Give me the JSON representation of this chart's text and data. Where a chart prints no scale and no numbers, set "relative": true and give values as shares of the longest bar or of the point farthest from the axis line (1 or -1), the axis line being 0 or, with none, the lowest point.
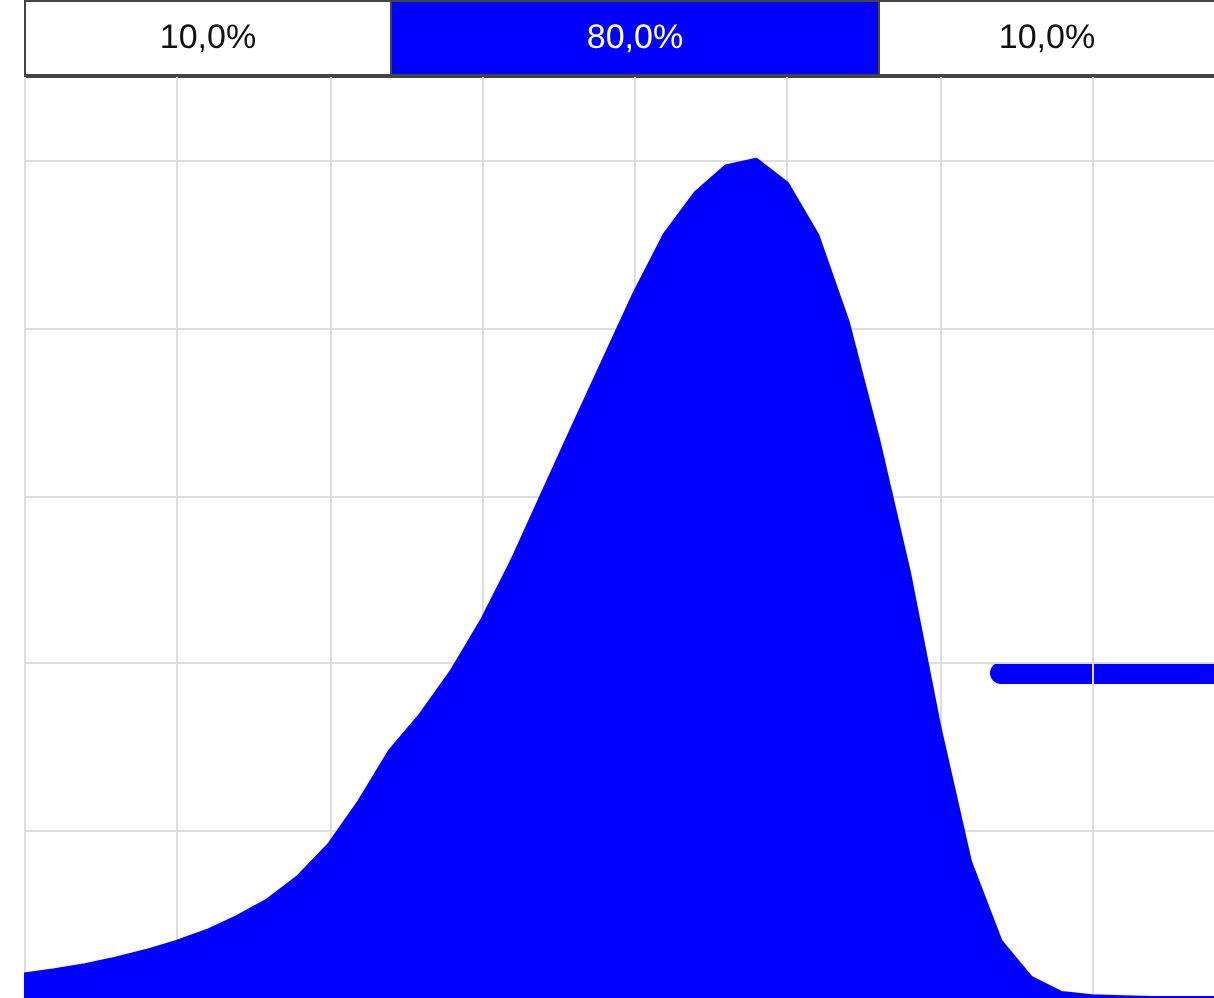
{
  "chart_data": {
    "type": "area",
    "relative": true,
    "grid": true,
    "annotations": [
      "10,0%",
      "80,0%",
      "10,0%"
    ],
    "categories": [
      null,
      null,
      null,
      null,
      null,
      null,
      null,
      null,
      null,
      null,
      null,
      null,
      null,
      null,
      null,
      null,
      null,
      null,
      null,
      null,
      null,
      null,
      null,
      null,
      null,
      null,
      null,
      null,
      null,
      null,
      null,
      null,
      null,
      null,
      null,
      null,
      null,
      null,
      null,
      null
    ],
    "series": [
      {
        "color": "#0000ff",
        "values": [
          0.028,
          0.033,
          0.039,
          0.047,
          0.056,
          0.067,
          0.08,
          0.097,
          0.117,
          0.145,
          0.183,
          0.235,
          0.295,
          0.338,
          0.389,
          0.45,
          0.522,
          0.602,
          0.682,
          0.761,
          0.84,
          0.911,
          0.96,
          0.992,
          1,
          0.972,
          0.91,
          0.806,
          0.665,
          0.508,
          0.323,
          0.163,
          0.068,
          0.024,
          0.006,
          0.002,
          0.001,
          0,
          0,
          0
        ]
      }
    ]
  }
}
